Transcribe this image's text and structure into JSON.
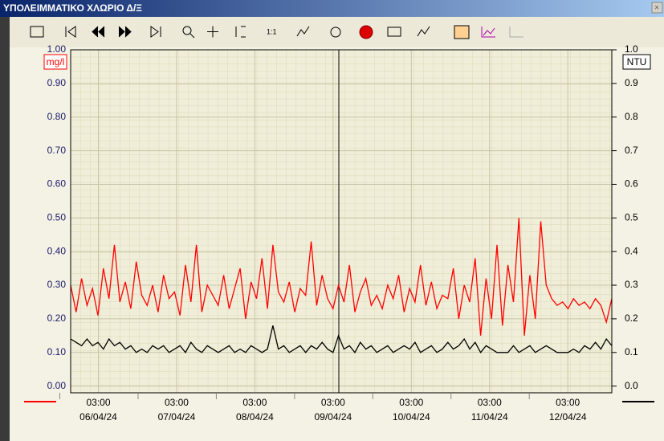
{
  "window": {
    "title": "ΥΠΟΛΕΙΜΜΑΤΙΚΟ ΧΛΩΡΙΟ Δ/Ξ"
  },
  "chart_data": {
    "type": "line",
    "ylabel": "mg/l",
    "y2label": "NTU",
    "xlim": [
      "05/04/24 18:30",
      "12/04/24 16:30"
    ],
    "xticks": [
      {
        "time": "03:00",
        "date": "06/04/24"
      },
      {
        "time": "03:00",
        "date": "07/04/24"
      },
      {
        "time": "03:00",
        "date": "08/04/24"
      },
      {
        "time": "03:00",
        "date": "09/04/24"
      },
      {
        "time": "03:00",
        "date": "10/04/24"
      },
      {
        "time": "03:00",
        "date": "11/04/24"
      },
      {
        "time": "03:00",
        "date": "12/04/24"
      }
    ],
    "ylim": [
      -0.02,
      1.0
    ],
    "yticks": [
      {
        "value": 0,
        "label": "0.00"
      },
      {
        "value": 0.1,
        "label": "0.10"
      },
      {
        "value": 0.2,
        "label": "0.20"
      },
      {
        "value": 0.3,
        "label": "0.30"
      },
      {
        "value": 0.4,
        "label": "0.40"
      },
      {
        "value": 0.5,
        "label": "0.50"
      },
      {
        "value": 0.6,
        "label": "0.60"
      },
      {
        "value": 0.7,
        "label": "0.70"
      },
      {
        "value": 0.8,
        "label": "0.80"
      },
      {
        "value": 0.9,
        "label": "0.90"
      },
      {
        "value": 1,
        "label": "1.00"
      }
    ],
    "y2lim": [
      -0.02,
      1.0
    ],
    "y2ticks": [
      {
        "value": 0,
        "label": "0.0"
      },
      {
        "value": 0.1,
        "label": "0.1"
      },
      {
        "value": 0.2,
        "label": "0.2"
      },
      {
        "value": 0.3,
        "label": "0.3"
      },
      {
        "value": 0.4,
        "label": "0.4"
      },
      {
        "value": 0.5,
        "label": "0.5"
      },
      {
        "value": 0.6,
        "label": "0.6"
      },
      {
        "value": 0.7,
        "label": "0.7"
      },
      {
        "value": 0.8,
        "label": "0.8"
      },
      {
        "value": 0.9,
        "label": "0.9"
      },
      {
        "value": 1,
        "label": "1.0"
      }
    ],
    "grid": true,
    "series": [
      {
        "color": "#ff0000",
        "values": [
          0.3,
          0.22,
          0.32,
          0.24,
          0.29,
          0.21,
          0.35,
          0.26,
          0.42,
          0.25,
          0.31,
          0.23,
          0.37,
          0.27,
          0.24,
          0.3,
          0.22,
          0.33,
          0.26,
          0.28,
          0.21,
          0.36,
          0.25,
          0.42,
          0.22,
          0.3,
          0.27,
          0.24,
          0.33,
          0.23,
          0.29,
          0.35,
          0.2,
          0.31,
          0.26,
          0.38,
          0.23,
          0.42,
          0.28,
          0.25,
          0.31,
          0.22,
          0.29,
          0.27,
          0.43,
          0.24,
          0.33,
          0.26,
          0.23,
          0.3,
          0.25,
          0.36,
          0.22,
          0.28,
          0.32,
          0.24,
          0.27,
          0.23,
          0.3,
          0.26,
          0.33,
          0.22,
          0.29,
          0.25,
          0.36,
          0.24,
          0.31,
          0.23,
          0.27,
          0.26,
          0.35,
          0.2,
          0.3,
          0.25,
          0.38,
          0.15,
          0.32,
          0.2,
          0.42,
          0.18,
          0.36,
          0.25,
          0.5,
          0.15,
          0.33,
          0.2,
          0.49,
          0.3,
          0.26,
          0.24,
          0.25,
          0.23,
          0.26,
          0.24,
          0.25,
          0.23,
          0.26,
          0.24,
          0.19,
          0.26
        ]
      },
      {
        "color": "#000000",
        "values": [
          0.14,
          0.13,
          0.12,
          0.14,
          0.12,
          0.13,
          0.11,
          0.14,
          0.12,
          0.13,
          0.11,
          0.12,
          0.1,
          0.11,
          0.1,
          0.12,
          0.11,
          0.12,
          0.1,
          0.11,
          0.12,
          0.1,
          0.13,
          0.11,
          0.1,
          0.12,
          0.11,
          0.1,
          0.11,
          0.12,
          0.1,
          0.11,
          0.1,
          0.12,
          0.11,
          0.1,
          0.11,
          0.18,
          0.11,
          0.12,
          0.1,
          0.11,
          0.12,
          0.1,
          0.12,
          0.11,
          0.13,
          0.11,
          0.1,
          0.15,
          0.11,
          0.12,
          0.1,
          0.13,
          0.11,
          0.12,
          0.1,
          0.11,
          0.12,
          0.1,
          0.11,
          0.12,
          0.11,
          0.13,
          0.1,
          0.11,
          0.12,
          0.1,
          0.11,
          0.13,
          0.11,
          0.12,
          0.14,
          0.11,
          0.13,
          0.1,
          0.12,
          0.11,
          0.1,
          0.1,
          0.1,
          0.12,
          0.1,
          0.11,
          0.12,
          0.1,
          0.11,
          0.12,
          0.11,
          0.1,
          0.1,
          0.1,
          0.11,
          0.1,
          0.12,
          0.11,
          0.13,
          0.11,
          0.14,
          0.12
        ]
      }
    ]
  }
}
